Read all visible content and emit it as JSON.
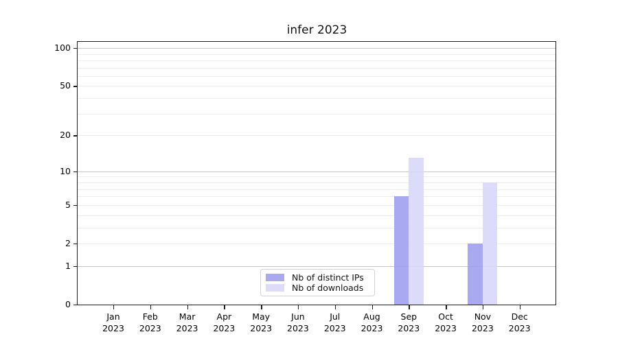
{
  "chart_data": {
    "type": "bar",
    "title": "infer 2023",
    "categories": [
      "Jan 2023",
      "Feb 2023",
      "Mar 2023",
      "Apr 2023",
      "May 2023",
      "Jun 2023",
      "Jul 2023",
      "Aug 2023",
      "Sep 2023",
      "Oct 2023",
      "Nov 2023",
      "Dec 2023"
    ],
    "x_months": [
      "Jan",
      "Feb",
      "Mar",
      "Apr",
      "May",
      "Jun",
      "Jul",
      "Aug",
      "Sep",
      "Oct",
      "Nov",
      "Dec"
    ],
    "x_year": "2023",
    "series": [
      {
        "name": "Nb of distinct IPs",
        "color": "#9d9df0",
        "values": [
          0,
          0,
          0,
          0,
          0,
          0,
          0,
          0,
          6,
          0,
          2,
          0
        ]
      },
      {
        "name": "Nb of downloads",
        "color": "#d7d7f9",
        "values": [
          0,
          0,
          0,
          0,
          0,
          0,
          0,
          0,
          13,
          0,
          8,
          0
        ]
      }
    ],
    "yscale": "log1p",
    "ylim": [
      0,
      112
    ],
    "y_ticks": [
      0,
      1,
      2,
      5,
      10,
      20,
      50,
      100
    ],
    "y_major_gridlines": [
      1,
      10,
      100
    ],
    "y_minor_gridlines": [
      2,
      3,
      4,
      5,
      6,
      7,
      8,
      9,
      20,
      30,
      40,
      50,
      60,
      70,
      80,
      90
    ],
    "grid": "horizontal",
    "legend_position": "bottom-center"
  }
}
